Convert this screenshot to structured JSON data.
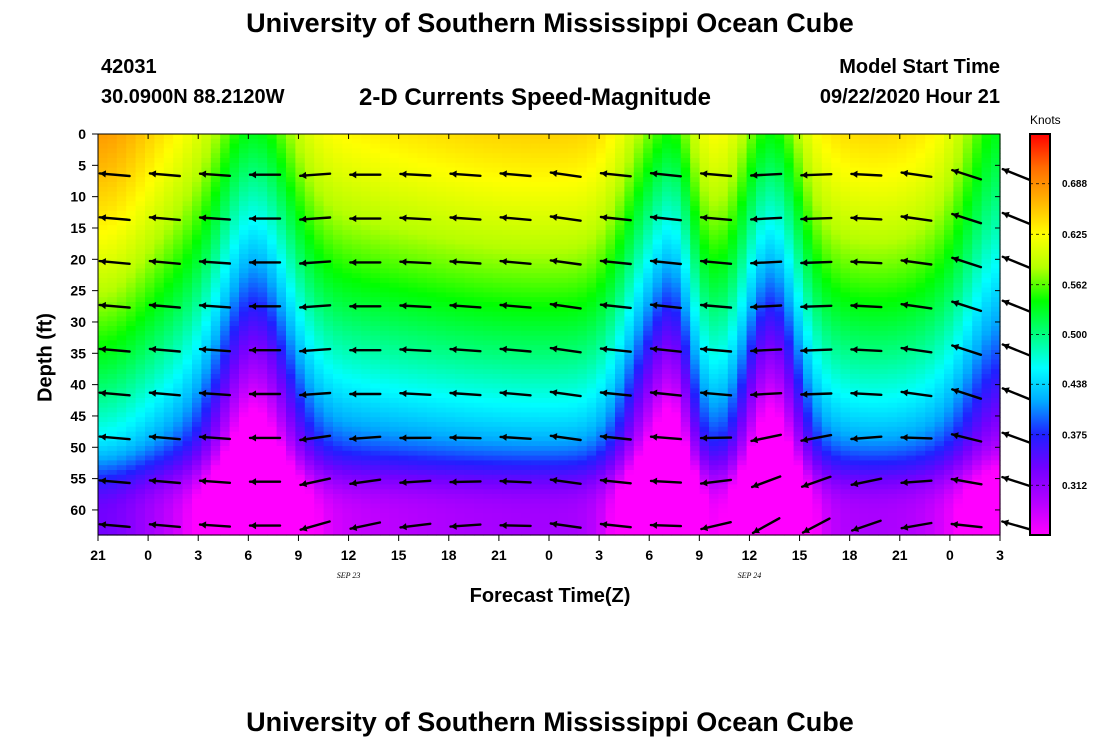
{
  "page": {
    "title_top": "University of Southern Mississippi Ocean Cube",
    "title_bottom": "University of Southern Mississippi Ocean Cube",
    "station_id": "42031",
    "station_coords": "30.0900N 88.2120W",
    "chart_title": "2-D Currents Speed-Magnitude",
    "model_label": "Model Start Time",
    "model_time": "09/22/2020 Hour 21"
  },
  "chart_data": {
    "type": "heatmap",
    "title": "2-D Currents Speed-Magnitude",
    "xlabel": "Forecast Time(Z)",
    "ylabel": "Depth (ft)",
    "x_ticks": [
      "21",
      "0",
      "3",
      "6",
      "9",
      "12",
      "15",
      "18",
      "21",
      "0",
      "3",
      "6",
      "9",
      "12",
      "15",
      "18",
      "21",
      "0",
      "3"
    ],
    "date_labels": [
      {
        "text": "SEP 23",
        "at_tick": 5
      },
      {
        "text": "SEP 24",
        "at_tick": 13
      }
    ],
    "y_ticks": [
      0,
      5,
      10,
      15,
      20,
      25,
      30,
      35,
      40,
      45,
      50,
      55,
      60
    ],
    "ylim": [
      0,
      64
    ],
    "y_inverted": true,
    "colorbar": {
      "units": "Knots",
      "ticks": [
        "0.688",
        "0.625",
        "0.562",
        "0.500",
        "0.438",
        "0.375",
        "0.312"
      ],
      "range": [
        0.25,
        0.75
      ],
      "colors": [
        "#ff00ff",
        "#b400ff",
        "#7300ff",
        "#2020ff",
        "#00aaff",
        "#00ffff",
        "#00ff80",
        "#00ff00",
        "#b4ff00",
        "#ffff00",
        "#ffb400",
        "#ff6c00",
        "#ff0000"
      ]
    },
    "vector_rows_depth_ft": [
      6.5,
      13.5,
      20.5,
      27.5,
      34.5,
      41.5,
      48.5,
      55.5,
      62.5
    ],
    "vector_columns_hours": [
      1,
      4,
      7,
      10,
      13,
      16,
      19,
      22,
      25,
      28,
      31,
      34,
      37,
      40,
      43,
      46,
      49,
      52,
      55
    ],
    "vector_angles_deg": [
      -5,
      -5,
      -4,
      0,
      4,
      0,
      -3,
      -4,
      -5,
      -8,
      -6,
      -6,
      -5,
      3,
      2,
      -3,
      -8,
      -18,
      -22
    ],
    "bottom_veer_deg": [
      0,
      0,
      0,
      0,
      12,
      12,
      10,
      8,
      4,
      0,
      0,
      4,
      18,
      26,
      26,
      22,
      18,
      12,
      6
    ]
  }
}
